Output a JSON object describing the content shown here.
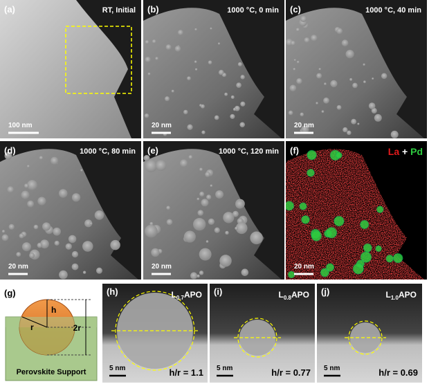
{
  "panels": [
    {
      "label": "(a)",
      "title": "RT, Initial",
      "scale_bar": "100 nm"
    },
    {
      "label": "(b)",
      "title": "1000 °C, 0 min",
      "scale_bar": "20 nm"
    },
    {
      "label": "(c)",
      "title": "1000 °C, 40 min",
      "scale_bar": "20 nm"
    },
    {
      "label": "(d)",
      "title": "1000 °C, 80 min",
      "scale_bar": "20 nm"
    },
    {
      "label": "(e)",
      "title": "1000 °C, 120 min",
      "scale_bar": "20 nm"
    },
    {
      "label": "(f)",
      "scale_bar": "20 nm",
      "legend": {
        "la": "La",
        "plus": "+",
        "pd": "Pd"
      }
    }
  ],
  "schematic": {
    "label": "(g)",
    "h": "h",
    "r": "r",
    "two_r": "2r",
    "support": "Perovskite Support"
  },
  "hrtem": [
    {
      "label": "(h)",
      "sample": {
        "prefix": "L",
        "sub": "0.7",
        "suffix": "APO"
      },
      "scale_bar": "5 nm",
      "ratio": "h/r = 1.1"
    },
    {
      "label": "(i)",
      "sample": {
        "prefix": "L",
        "sub": "0.8",
        "suffix": "APO"
      },
      "scale_bar": "5 nm",
      "ratio": "h/r = 0.77"
    },
    {
      "label": "(j)",
      "sample": {
        "prefix": "L",
        "sub": "1.0",
        "suffix": "APO"
      },
      "scale_bar": "5 nm",
      "ratio": "h/r = 0.69"
    }
  ]
}
